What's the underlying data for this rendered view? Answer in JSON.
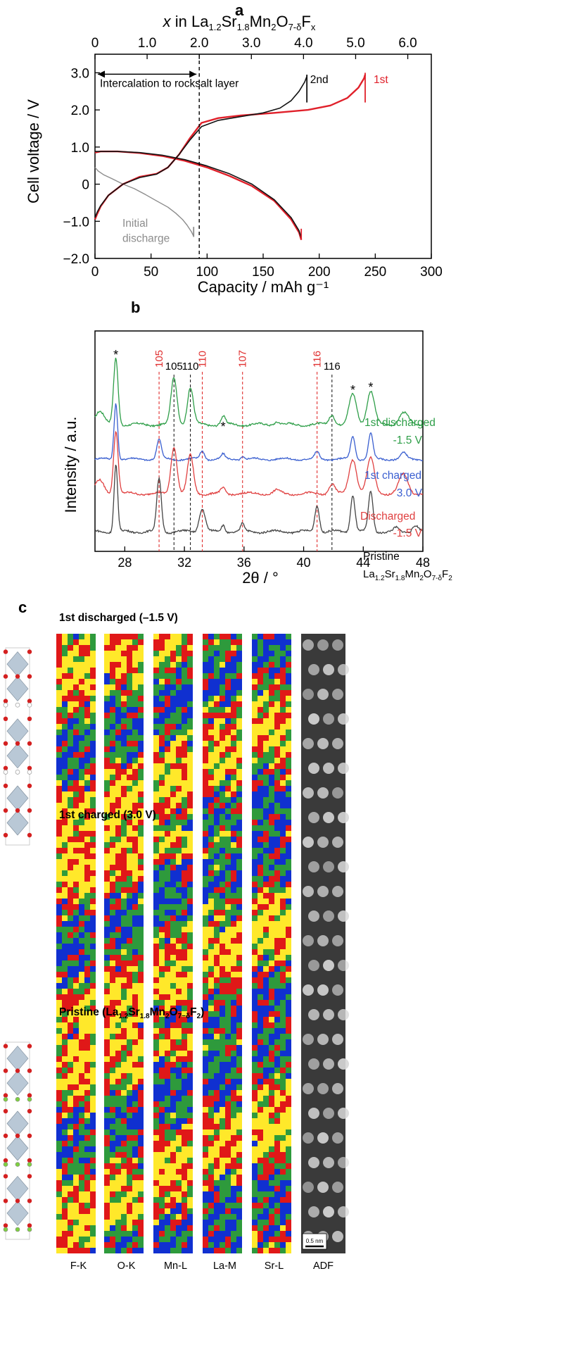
{
  "panel_a": {
    "label": "a",
    "chart_data": {
      "type": "line",
      "title": "",
      "xlabel": "Capacity / mAh g⁻¹",
      "ylabel": "Cell voltage / V",
      "xlim": [
        0,
        300
      ],
      "ylim": [
        -2.0,
        3.5
      ],
      "xticks": [
        "0",
        "50",
        "100",
        "150",
        "200",
        "250",
        "300"
      ],
      "yticks": [
        "3.0",
        "2.0",
        "1.0",
        "0",
        "−1.0",
        "−2.0"
      ],
      "top_axis": {
        "label_prefix": "x",
        "label_mid": " in La",
        "s1": "1.2",
        "m1": "Sr",
        "s2": "1.8",
        "m2": "Mn",
        "s3": "2",
        "m3": "O",
        "s4": "7-δ",
        "m4": "F",
        "s5": "x",
        "ticks": [
          "0",
          "1.0",
          "2.0",
          "3.0",
          "4.0",
          "5.0",
          "6.0"
        ]
      },
      "annotations": {
        "intercalation": "Intercalation to rocksalt layer",
        "initial_line1": "Initial",
        "initial_line2": "discharge",
        "label_2nd": "2nd",
        "label_1st": "1st",
        "dashed_x": 93
      },
      "series": [
        {
          "name": "Initial discharge",
          "color": "#8c8c8c",
          "x": [
            0,
            3,
            8,
            15,
            25,
            35,
            45,
            55,
            65,
            72,
            78,
            82,
            86,
            88
          ],
          "y": [
            0.45,
            0.35,
            0.25,
            0.15,
            0.0,
            -0.12,
            -0.28,
            -0.45,
            -0.62,
            -0.78,
            -0.95,
            -1.1,
            -1.28,
            -1.4
          ]
        },
        {
          "name": "1st discharge",
          "color": "#e0202a",
          "x": [
            0,
            5,
            20,
            40,
            60,
            80,
            100,
            120,
            140,
            160,
            175,
            182,
            184
          ],
          "y": [
            0.85,
            0.88,
            0.88,
            0.84,
            0.76,
            0.63,
            0.45,
            0.22,
            -0.05,
            -0.45,
            -0.95,
            -1.3,
            -1.5
          ]
        },
        {
          "name": "1st charge",
          "color": "#e0202a",
          "x": [
            0,
            2,
            5,
            12,
            25,
            40,
            55,
            65,
            75,
            85,
            95,
            110,
            130,
            160,
            190,
            210,
            225,
            235,
            240,
            241
          ],
          "y": [
            -0.95,
            -0.8,
            -0.6,
            -0.3,
            0.0,
            0.2,
            0.28,
            0.45,
            0.8,
            1.25,
            1.65,
            1.78,
            1.85,
            1.92,
            2.0,
            2.12,
            2.32,
            2.6,
            2.85,
            2.95
          ]
        },
        {
          "name": "2nd discharge",
          "color": "#111111",
          "x": [
            0,
            5,
            20,
            40,
            60,
            80,
            100,
            120,
            140,
            160,
            175,
            182,
            184
          ],
          "y": [
            0.88,
            0.88,
            0.88,
            0.85,
            0.78,
            0.66,
            0.49,
            0.28,
            0.0,
            -0.42,
            -0.9,
            -1.25,
            -1.45
          ]
        },
        {
          "name": "2nd charge",
          "color": "#111111",
          "x": [
            0,
            2,
            5,
            12,
            25,
            40,
            55,
            65,
            75,
            85,
            95,
            110,
            130,
            150,
            165,
            175,
            182,
            187,
            189
          ],
          "y": [
            -0.9,
            -0.75,
            -0.58,
            -0.3,
            0.0,
            0.18,
            0.27,
            0.45,
            0.8,
            1.2,
            1.55,
            1.72,
            1.82,
            1.92,
            2.05,
            2.25,
            2.5,
            2.75,
            2.9
          ]
        }
      ]
    }
  },
  "panel_b": {
    "label": "b",
    "chart_data": {
      "type": "line",
      "xlabel": "2θ / °",
      "ylabel": "Intensity / a.u.",
      "xlim": [
        26,
        48
      ],
      "xticks": [
        "28",
        "32",
        "36",
        "40",
        "44",
        "48"
      ],
      "red_refs": [
        {
          "label": "105",
          "x": 30.3
        },
        {
          "label": "110",
          "x": 33.2
        },
        {
          "label": "107",
          "x": 35.9
        },
        {
          "label": "116",
          "x": 40.9
        }
      ],
      "black_refs": [
        {
          "label": "105",
          "x": 31.3
        },
        {
          "label": "110",
          "x": 32.4
        },
        {
          "label": "116",
          "x": 41.9
        }
      ],
      "asterisk": "*",
      "asterisk_x": [
        27.4,
        34.6,
        43.3,
        44.5
      ],
      "series": [
        {
          "name_line1": "1st discharged",
          "name_line2": "-1.5 V",
          "color": "#2e9e48",
          "peaks": [
            [
              27.4,
              1.0,
              0.15
            ],
            [
              26.3,
              0.2,
              0.3
            ],
            [
              31.3,
              0.7,
              0.2
            ],
            [
              32.4,
              0.55,
              0.2
            ],
            [
              34.6,
              0.12,
              0.15
            ],
            [
              38.2,
              0.05,
              0.2
            ],
            [
              41.9,
              0.15,
              0.2
            ],
            [
              43.3,
              0.45,
              0.25
            ],
            [
              44.5,
              0.5,
              0.25
            ],
            [
              46.7,
              0.18,
              0.3
            ]
          ]
        },
        {
          "name_line1": "1st charged",
          "name_line2": "3.0 V",
          "color": "#3a5fd0",
          "peaks": [
            [
              27.4,
              1.0,
              0.12
            ],
            [
              30.3,
              0.35,
              0.15
            ],
            [
              33.2,
              0.15,
              0.15
            ],
            [
              34.6,
              0.08,
              0.12
            ],
            [
              35.9,
              0.05,
              0.12
            ],
            [
              40.9,
              0.12,
              0.15
            ],
            [
              43.3,
              0.4,
              0.15
            ],
            [
              44.5,
              0.45,
              0.15
            ],
            [
              46.7,
              0.1,
              0.2
            ]
          ]
        },
        {
          "name_line1": "Discharged",
          "name_line2": "-1.5 V",
          "color": "#e04040",
          "peaks": [
            [
              27.4,
              1.0,
              0.15
            ],
            [
              26.3,
              0.2,
              0.3
            ],
            [
              31.3,
              0.75,
              0.2
            ],
            [
              32.4,
              0.6,
              0.2
            ],
            [
              34.6,
              0.08,
              0.15
            ],
            [
              38.2,
              0.05,
              0.2
            ],
            [
              41.9,
              0.15,
              0.2
            ],
            [
              43.3,
              0.55,
              0.25
            ],
            [
              44.5,
              0.55,
              0.25
            ],
            [
              46.7,
              0.3,
              0.3
            ]
          ]
        },
        {
          "name_line1": "Pristine",
          "name_line2": "",
          "color": "#444444",
          "peaks": [
            [
              27.4,
              1.0,
              0.12
            ],
            [
              30.3,
              0.8,
              0.15
            ],
            [
              33.2,
              0.35,
              0.2
            ],
            [
              34.6,
              0.1,
              0.12
            ],
            [
              35.9,
              0.12,
              0.12
            ],
            [
              40.9,
              0.4,
              0.15
            ],
            [
              43.3,
              0.55,
              0.15
            ],
            [
              44.5,
              0.6,
              0.15
            ],
            [
              46.2,
              0.05,
              0.15
            ],
            [
              47.5,
              0.1,
              0.2
            ]
          ]
        }
      ],
      "pristine_formula": {
        "m0": "La",
        "s1": "1.2",
        "m1": "Sr",
        "s2": "1.8",
        "m2": "Mn",
        "s3": "2",
        "m3": "O",
        "s4": "7-δ",
        "m4": "F",
        "s5": "2"
      }
    }
  },
  "panel_c": {
    "label": "c",
    "rows": [
      {
        "title": "1st discharged (–1.5 V)",
        "seed": 11
      },
      {
        "title": "1st charged  (3.0 V)",
        "seed": 37
      },
      {
        "title_pre": "Pristine (La",
        "s1": "1.2",
        "m1": "Sr",
        "s2": "1.8",
        "m2": "Mn",
        "s3": "2",
        "m3": "O",
        "s4": "7−δ",
        "m4": "F",
        "s5": "2",
        "title_post": ")",
        "seed": 73
      }
    ],
    "maps": [
      "F-K",
      "O-K",
      "Mn-L",
      "La-M",
      "Sr-L",
      "ADF"
    ],
    "scalebar": "0.5 nm",
    "colors": {
      "low": "#1030d0",
      "mid": "#2e9a3c",
      "high": "#e01818",
      "peak": "#ffe82a"
    }
  }
}
